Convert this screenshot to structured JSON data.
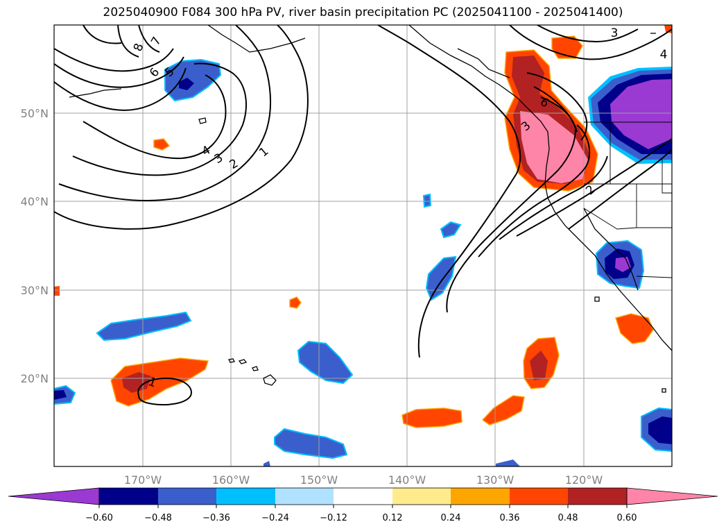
{
  "title": "2025040900 F084 300 hPa PV, river basin precipitation PC (2025041100 - 2025041400)",
  "map": {
    "lon_ticks": [
      "170°W",
      "160°W",
      "150°W",
      "140°W",
      "130°W",
      "120°W"
    ],
    "lat_ticks": [
      "50°N",
      "40°N",
      "30°N",
      "20°N"
    ],
    "gridlines": true,
    "pv_contour_labels": [
      "8",
      "7",
      "6",
      "5",
      "4",
      "3",
      "2",
      "1",
      "6",
      "3",
      "2",
      "1",
      "3",
      "4"
    ]
  },
  "colorbar": {
    "ticks": [
      "−0.60",
      "−0.48",
      "−0.36",
      "−0.24",
      "−0.12",
      "0.12",
      "0.24",
      "0.36",
      "0.48",
      "0.60"
    ],
    "colors": [
      "#9a3ad2",
      "#00008b",
      "#3a5fcd",
      "#00bfff",
      "#b0e2ff",
      "#ffffff",
      "#ffeb8c",
      "#ffa500",
      "#ff4500",
      "#b22222",
      "#ff85a8"
    ],
    "extend": "both"
  }
}
